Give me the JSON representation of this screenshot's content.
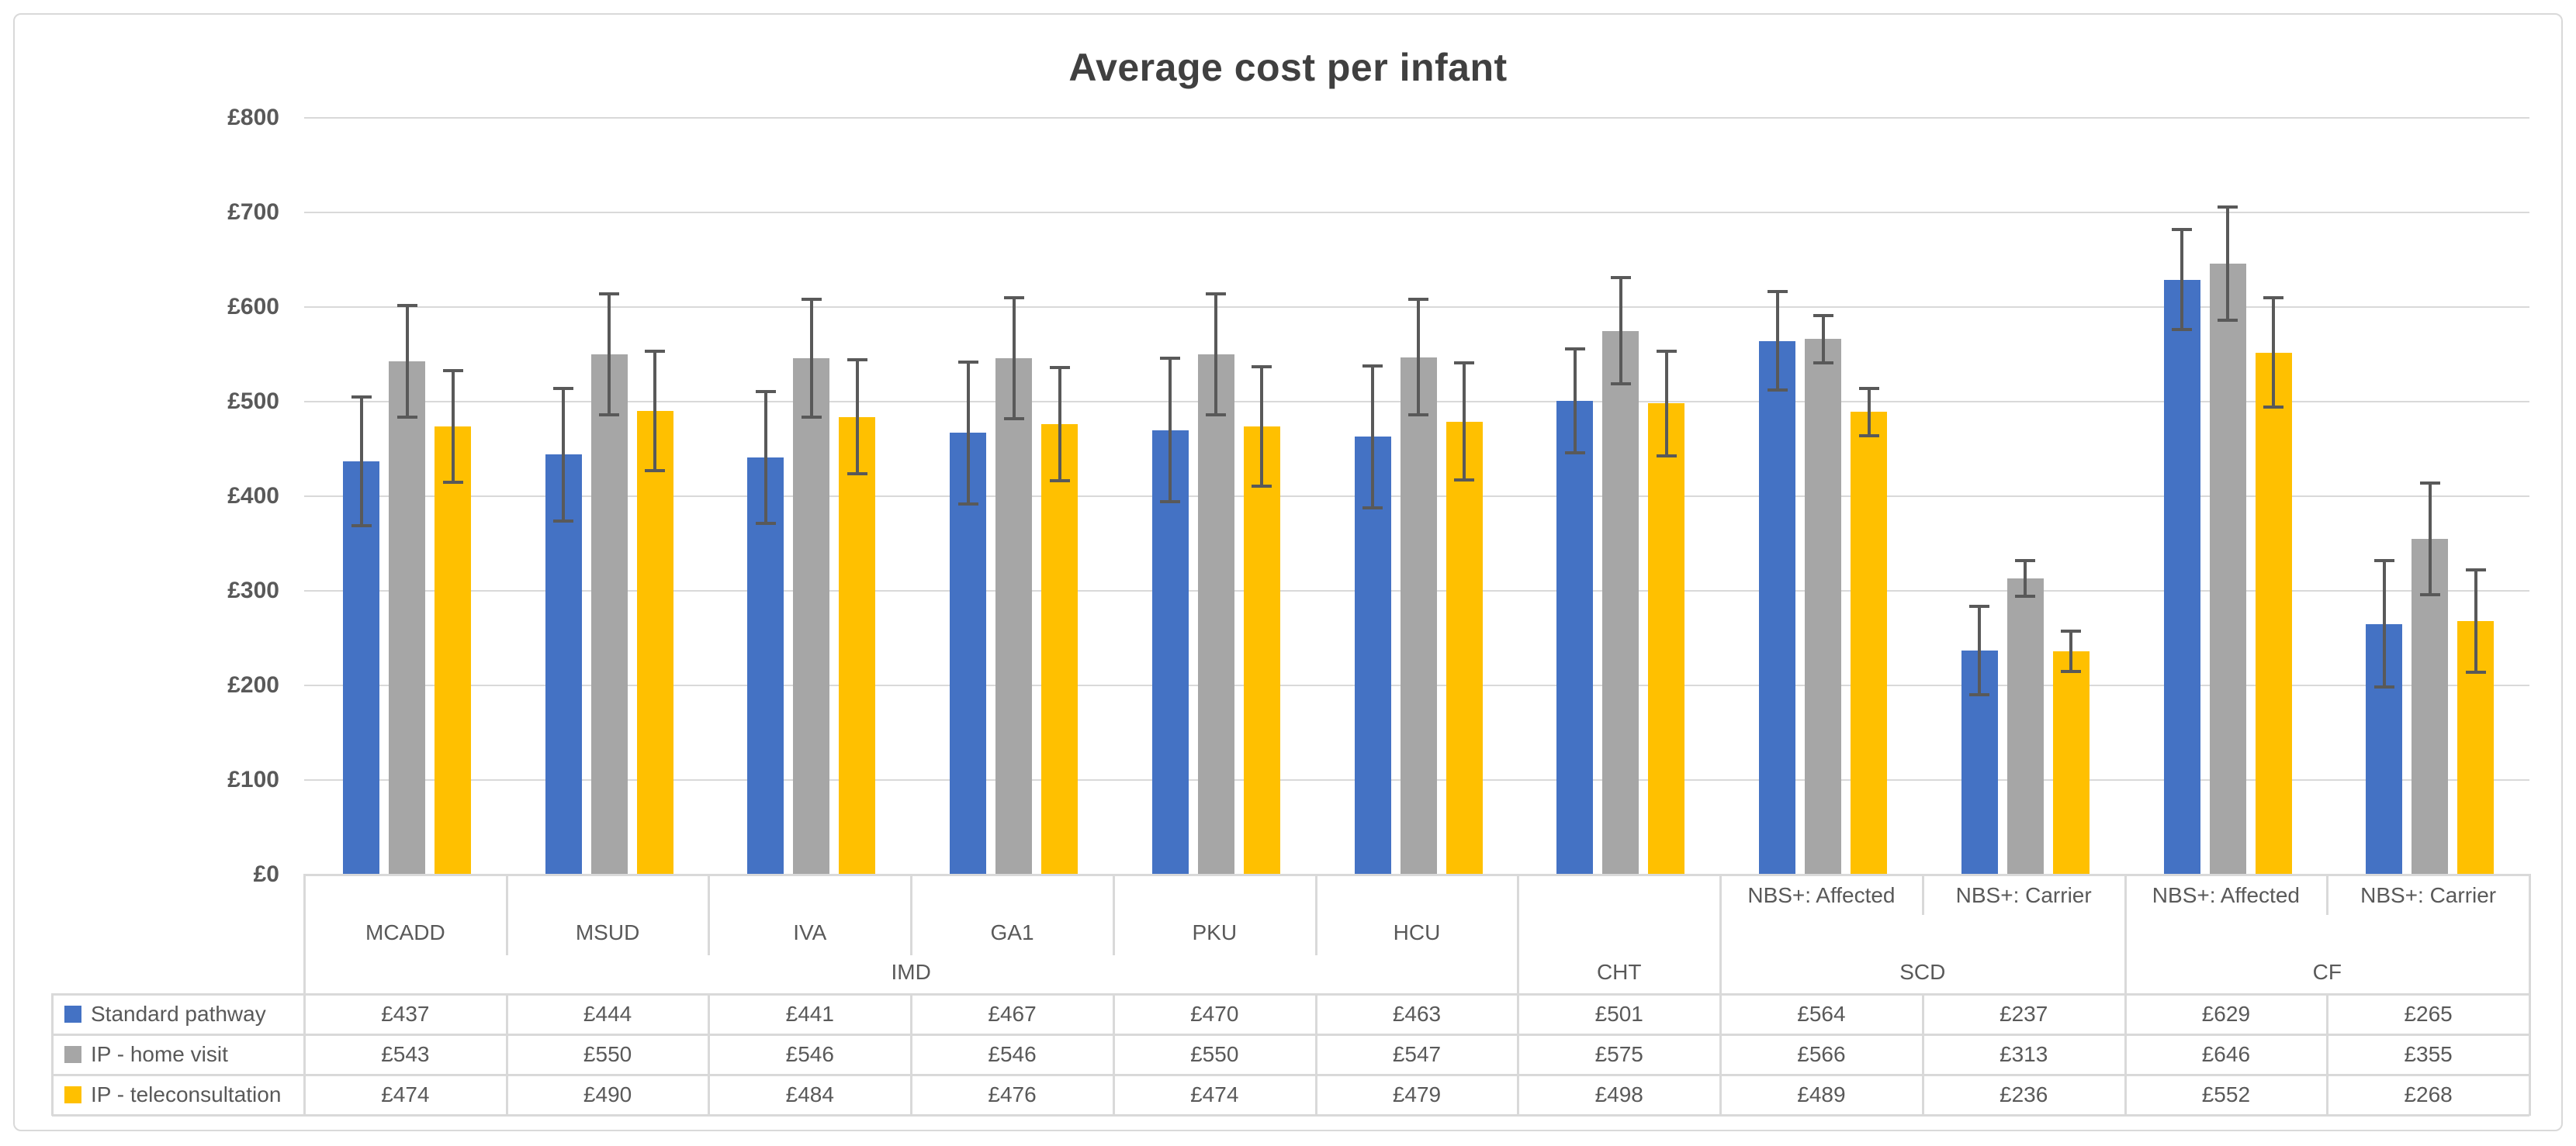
{
  "title": "Average cost per infant",
  "y_axis": {
    "tick_labels": [
      "£800",
      "£700",
      "£600",
      "£500",
      "£400",
      "£300",
      "£200",
      "£100",
      "£0"
    ],
    "max": 800,
    "step": 100
  },
  "chart_data": {
    "type": "bar",
    "title": "Average cost per infant",
    "xlabel": "",
    "ylabel": "",
    "ylim": [
      0,
      800
    ],
    "grid": true,
    "legend_position": "data-table-left",
    "groups": [
      {
        "label": "IMD",
        "categories": [
          "MCADD",
          "MSUD",
          "IVA",
          "GA1",
          "PKU",
          "HCU"
        ]
      },
      {
        "label": "CHT",
        "categories": [
          ""
        ]
      },
      {
        "label": "SCD",
        "categories": [
          "NBS+: Affected",
          "NBS+: Carrier"
        ]
      },
      {
        "label": "CF",
        "categories": [
          "NBS+: Affected",
          "NBS+: Carrier"
        ]
      }
    ],
    "series": [
      {
        "name": "Standard pathway",
        "color": "#4472C4",
        "values": [
          437,
          444,
          441,
          467,
          470,
          463,
          501,
          564,
          237,
          629,
          265
        ],
        "errors": [
          68,
          70,
          70,
          75,
          76,
          75,
          55,
          52,
          47,
          53,
          67
        ]
      },
      {
        "name": "IP - home visit",
        "color": "#A6A6A6",
        "values": [
          543,
          550,
          546,
          546,
          550,
          547,
          575,
          566,
          313,
          646,
          355
        ],
        "errors": [
          59,
          64,
          62,
          64,
          64,
          61,
          56,
          25,
          19,
          60,
          59
        ]
      },
      {
        "name": "IP - teleconsultation",
        "color": "#FFC000",
        "values": [
          474,
          490,
          484,
          476,
          474,
          479,
          498,
          489,
          236,
          552,
          268
        ],
        "errors": [
          59,
          63,
          60,
          60,
          63,
          62,
          55,
          25,
          21,
          58,
          54
        ]
      }
    ],
    "error_bar_color": "#595959"
  },
  "table": {
    "rows": [
      {
        "label": "Standard pathway",
        "swatch": "#4472C4",
        "values": [
          "£437",
          "£444",
          "£441",
          "£467",
          "£470",
          "£463",
          "£501",
          "£564",
          "£237",
          "£629",
          "£265"
        ]
      },
      {
        "label": "IP - home visit",
        "swatch": "#A6A6A6",
        "values": [
          "£543",
          "£550",
          "£546",
          "£546",
          "£550",
          "£547",
          "£575",
          "£566",
          "£313",
          "£646",
          "£355"
        ]
      },
      {
        "label": "IP - teleconsultation",
        "swatch": "#FFC000",
        "values": [
          "£474",
          "£490",
          "£484",
          "£476",
          "£474",
          "£479",
          "£498",
          "£489",
          "£236",
          "£552",
          "£268"
        ]
      }
    ]
  },
  "colors": {
    "gridline": "#d9d9d9",
    "table_border": "#d9d9d9",
    "text": "#595959",
    "title_text": "#404040"
  }
}
